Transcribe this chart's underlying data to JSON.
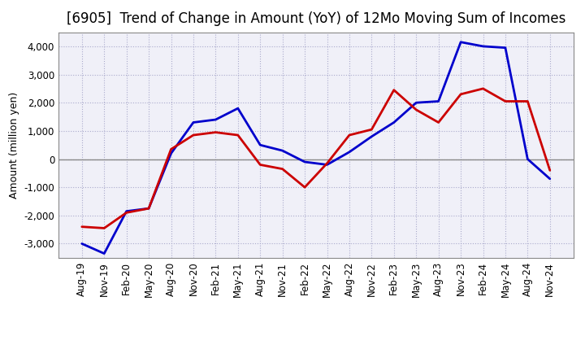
{
  "title": "[6905]  Trend of Change in Amount (YoY) of 12Mo Moving Sum of Incomes",
  "ylabel": "Amount (million yen)",
  "x_labels": [
    "Aug-19",
    "Nov-19",
    "Feb-20",
    "May-20",
    "Aug-20",
    "Nov-20",
    "Feb-21",
    "May-21",
    "Aug-21",
    "Nov-21",
    "Feb-22",
    "May-22",
    "Aug-22",
    "Nov-22",
    "Feb-23",
    "May-23",
    "Aug-23",
    "Nov-23",
    "Feb-24",
    "May-24",
    "Aug-24",
    "Nov-24"
  ],
  "ordinary_income": [
    -3000,
    -3350,
    -1850,
    -1750,
    200,
    1300,
    1400,
    1800,
    500,
    300,
    -100,
    -200,
    250,
    800,
    1300,
    2000,
    2050,
    4150,
    4000,
    3950,
    0,
    -700
  ],
  "net_income": [
    -2400,
    -2450,
    -1900,
    -1750,
    350,
    850,
    950,
    850,
    -200,
    -350,
    -1000,
    -150,
    850,
    1050,
    2450,
    1750,
    1300,
    2300,
    2500,
    2050,
    2050,
    -400
  ],
  "ordinary_color": "#0000cc",
  "net_color": "#cc0000",
  "ylim": [
    -3500,
    4500
  ],
  "yticks": [
    -3000,
    -2000,
    -1000,
    0,
    1000,
    2000,
    3000,
    4000
  ],
  "bg_color": "#ffffff",
  "plot_bg_color": "#f0f0f8",
  "grid_color": "#aaaacc",
  "line_width": 2.0,
  "title_fontsize": 12,
  "ylabel_fontsize": 9,
  "legend_fontsize": 10,
  "tick_fontsize": 8.5
}
